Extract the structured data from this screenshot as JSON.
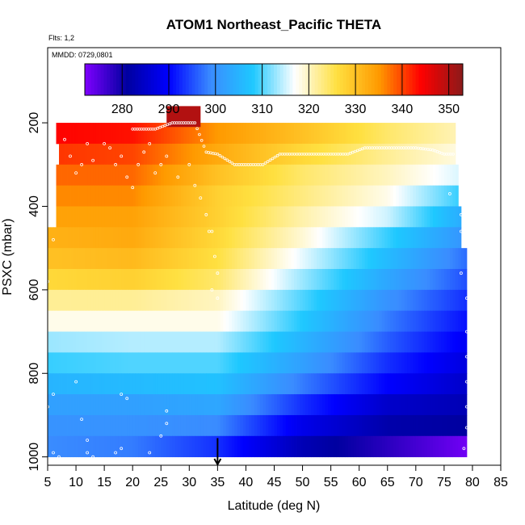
{
  "chart_data": {
    "type": "heatmap",
    "title": "ATOM1 Northeast_Pacific THETA",
    "flights_note": "Flts: 1,2",
    "date_note": "MMDD: 0729,0801",
    "xlabel": "Latitude (deg N)",
    "ylabel": "PSXC (mbar)",
    "x_ticks": [
      5,
      10,
      15,
      20,
      25,
      30,
      35,
      40,
      45,
      50,
      55,
      60,
      65,
      70,
      75,
      80,
      85
    ],
    "y_ticks": [
      200,
      400,
      600,
      800,
      1000
    ],
    "xlim": [
      5,
      85
    ],
    "ylim": [
      1020,
      20
    ],
    "y_inverted": true,
    "colorbar": {
      "ticks": [
        280,
        290,
        300,
        310,
        320,
        330,
        340,
        350
      ],
      "range": [
        272,
        353
      ],
      "palette": [
        "#7F00FF",
        "#0000A0",
        "#0000FF",
        "#3A8CFF",
        "#1EC8FF",
        "#FFFFFF",
        "#FFE040",
        "#FF9A00",
        "#FF0000",
        "#8B1A1A"
      ]
    },
    "pressure_levels_mbar": [
      225,
      275,
      325,
      375,
      425,
      475,
      525,
      575,
      625,
      675,
      725,
      775,
      825,
      875,
      925,
      975
    ],
    "row_ranges_deg_n": [
      [
        6.5,
        77
      ],
      [
        7,
        77
      ],
      [
        6.5,
        77.5
      ],
      [
        6.5,
        77.5
      ],
      [
        6.5,
        78
      ],
      [
        5,
        78
      ],
      [
        5,
        79
      ],
      [
        5,
        79
      ],
      [
        5,
        79
      ],
      [
        5,
        79
      ],
      [
        5,
        79
      ],
      [
        5,
        79
      ],
      [
        5,
        79
      ],
      [
        5,
        79
      ],
      [
        5,
        79
      ],
      [
        5,
        79
      ]
    ],
    "theta_profiles_K": {
      "note": "Potential temperature (K) by pressure level at latitude anchors",
      "latitude_anchors_deg_n": [
        5,
        20,
        35,
        50,
        65,
        79
      ],
      "levels": [
        {
          "p": 225,
          "theta": [
            344,
            343,
            335,
            330,
            324,
            320
          ]
        },
        {
          "p": 275,
          "theta": [
            341,
            340,
            333,
            327,
            322,
            318
          ]
        },
        {
          "p": 325,
          "theta": [
            338,
            338,
            330,
            324,
            320,
            315
          ]
        },
        {
          "p": 375,
          "theta": [
            336,
            336,
            328,
            323,
            318,
            308
          ]
        },
        {
          "p": 425,
          "theta": [
            334,
            334,
            328,
            321,
            315,
            303
          ]
        },
        {
          "p": 475,
          "theta": [
            332,
            333,
            327,
            319,
            309,
            300
          ]
        },
        {
          "p": 525,
          "theta": [
            330,
            331,
            326,
            316,
            306,
            297
          ]
        },
        {
          "p": 575,
          "theta": [
            327,
            328,
            324,
            313,
            303,
            295
          ]
        },
        {
          "p": 625,
          "theta": [
            322,
            322,
            320,
            310,
            300,
            293
          ]
        },
        {
          "p": 675,
          "theta": [
            318,
            318,
            318,
            308,
            298,
            291
          ]
        },
        {
          "p": 725,
          "theta": [
            313,
            314,
            314,
            305,
            296,
            289
          ]
        },
        {
          "p": 775,
          "theta": [
            309,
            310,
            310,
            302,
            293,
            287
          ]
        },
        {
          "p": 825,
          "theta": [
            305,
            306,
            307,
            298,
            290,
            285
          ]
        },
        {
          "p": 875,
          "theta": [
            302,
            302,
            303,
            293,
            285,
            283
          ]
        },
        {
          "p": 925,
          "theta": [
            300,
            300,
            299,
            288,
            282,
            281
          ]
        },
        {
          "p": 975,
          "theta": [
            299,
            298,
            293,
            283,
            278,
            273
          ]
        }
      ]
    },
    "extra_cell": {
      "lat_range": [
        26,
        32
      ],
      "p_range": [
        160,
        210
      ],
      "theta": 350
    },
    "flight_tracks": [
      {
        "name": "upper-level legs",
        "points": [
          [
            20,
            215
          ],
          [
            22,
            215
          ],
          [
            24,
            215
          ],
          [
            27,
            200
          ],
          [
            29,
            200
          ],
          [
            31,
            200
          ],
          [
            33,
            270
          ],
          [
            35,
            275
          ],
          [
            38,
            300
          ],
          [
            40,
            300
          ],
          [
            43,
            300
          ],
          [
            46,
            275
          ],
          [
            49,
            275
          ],
          [
            52,
            275
          ],
          [
            55,
            275
          ],
          [
            58,
            275
          ],
          [
            61,
            260
          ],
          [
            64,
            260
          ],
          [
            67,
            260
          ],
          [
            70,
            260
          ],
          [
            73,
            265
          ],
          [
            75,
            275
          ],
          [
            77,
            275
          ]
        ]
      },
      {
        "name": "profiles",
        "points": [
          [
            8,
            240
          ],
          [
            9,
            280
          ],
          [
            10,
            320
          ],
          [
            11,
            300
          ],
          [
            12,
            250
          ],
          [
            13,
            290
          ],
          [
            15,
            250
          ],
          [
            16,
            260
          ],
          [
            17,
            300
          ],
          [
            18,
            280
          ],
          [
            19,
            330
          ],
          [
            20,
            355
          ],
          [
            21,
            300
          ],
          [
            22,
            270
          ],
          [
            23,
            250
          ],
          [
            24,
            320
          ],
          [
            25,
            300
          ],
          [
            26,
            280
          ],
          [
            28,
            330
          ],
          [
            30,
            300
          ],
          [
            31,
            350
          ],
          [
            32,
            380
          ],
          [
            33,
            420
          ],
          [
            34,
            460
          ],
          [
            34.5,
            520
          ],
          [
            35,
            560
          ],
          [
            35,
            620
          ],
          [
            34,
            600
          ],
          [
            33.5,
            460
          ],
          [
            5,
            580
          ],
          [
            6,
            480
          ],
          [
            5,
            880
          ],
          [
            6,
            850
          ],
          [
            6,
            990
          ],
          [
            7,
            1000
          ],
          [
            10,
            820
          ],
          [
            11,
            910
          ],
          [
            12,
            960
          ],
          [
            12,
            990
          ],
          [
            13,
            1000
          ],
          [
            17,
            990
          ],
          [
            18,
            980
          ],
          [
            19,
            860
          ],
          [
            18,
            850
          ],
          [
            23,
            990
          ],
          [
            25,
            950
          ],
          [
            26,
            920
          ],
          [
            26,
            890
          ],
          [
            76,
            370
          ],
          [
            78,
            420
          ],
          [
            78,
            460
          ],
          [
            78,
            560
          ],
          [
            79,
            620
          ],
          [
            79,
            700
          ],
          [
            79,
            760
          ],
          [
            79,
            820
          ],
          [
            79,
            880
          ],
          [
            79,
            930
          ],
          [
            78.5,
            980
          ]
        ]
      }
    ],
    "marker": {
      "type": "arrow",
      "latitude_deg_n": 35,
      "pressure_mbar": 1000
    }
  }
}
